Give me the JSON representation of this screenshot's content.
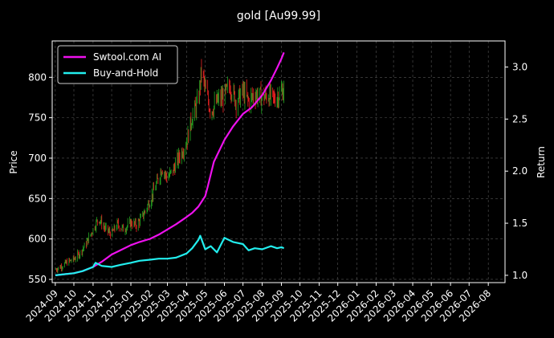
{
  "chart_data": {
    "type": "line",
    "title": "gold [Au99.99]",
    "ylabel_left": "Price",
    "ylabel_right": "Return",
    "ylim_left": [
      546,
      845
    ],
    "ylim_right": [
      0.93,
      3.25
    ],
    "yticks_left": [
      550,
      600,
      650,
      700,
      750,
      800
    ],
    "yticks_right": [
      1.0,
      1.5,
      2.0,
      2.5,
      3.0
    ],
    "yticks_right_labels": [
      "1.0",
      "1.5",
      "2.0",
      "2.5",
      "3.0"
    ],
    "x_ticks": [
      "2024-09",
      "2024-10",
      "2024-11",
      "2024-12",
      "2025-01",
      "2025-02",
      "2025-03",
      "2025-04",
      "2025-05",
      "2025-06",
      "2025-07",
      "2025-08",
      "2025-09",
      "2025-10",
      "2025-11",
      "2025-12",
      "2026-01",
      "2026-02",
      "2026-03",
      "2026-04",
      "2026-05",
      "2026-06",
      "2026-07",
      "2026-08"
    ],
    "grid": true,
    "legend_placement": "top-left",
    "colors": {
      "background": "#000000",
      "axes": "#ffffff",
      "grid": "#555555",
      "up": "#22aa22",
      "down": "#ee2222",
      "ai": "#ee11ee",
      "bh": "#22eeee"
    },
    "series": [
      {
        "name": "Swtool.com AI",
        "axis": "right",
        "x": [
          "2024-09-01",
          "2024-09-15",
          "2024-10-01",
          "2024-10-15",
          "2024-11-01",
          "2024-11-15",
          "2024-12-01",
          "2024-12-15",
          "2025-01-01",
          "2025-01-15",
          "2025-02-01",
          "2025-02-15",
          "2025-03-01",
          "2025-03-15",
          "2025-04-01",
          "2025-04-10",
          "2025-04-20",
          "2025-05-01",
          "2025-05-05",
          "2025-05-15",
          "2025-06-01",
          "2025-06-15",
          "2025-07-01",
          "2025-07-15",
          "2025-08-01",
          "2025-08-15",
          "2025-08-25",
          "2025-09-01",
          "2025-09-05"
        ],
        "values": [
          1.0,
          1.01,
          1.02,
          1.04,
          1.08,
          1.13,
          1.2,
          1.24,
          1.29,
          1.32,
          1.35,
          1.39,
          1.44,
          1.49,
          1.56,
          1.6,
          1.66,
          1.76,
          1.85,
          2.09,
          2.3,
          2.43,
          2.55,
          2.61,
          2.73,
          2.87,
          2.99,
          3.08,
          3.14
        ]
      },
      {
        "name": "Buy-and-Hold",
        "axis": "right",
        "x": [
          "2024-09-01",
          "2024-09-15",
          "2024-10-01",
          "2024-10-15",
          "2024-11-01",
          "2024-11-05",
          "2024-11-15",
          "2024-12-01",
          "2024-12-15",
          "2025-01-01",
          "2025-01-15",
          "2025-02-01",
          "2025-02-15",
          "2025-03-01",
          "2025-03-15",
          "2025-04-01",
          "2025-04-10",
          "2025-04-20",
          "2025-04-23",
          "2025-05-01",
          "2025-05-10",
          "2025-05-20",
          "2025-06-01",
          "2025-06-15",
          "2025-07-01",
          "2025-07-10",
          "2025-07-20",
          "2025-08-01",
          "2025-08-15",
          "2025-08-25",
          "2025-09-01",
          "2025-09-05"
        ],
        "values": [
          1.0,
          1.01,
          1.02,
          1.04,
          1.08,
          1.12,
          1.09,
          1.08,
          1.1,
          1.12,
          1.14,
          1.15,
          1.16,
          1.16,
          1.17,
          1.21,
          1.26,
          1.34,
          1.38,
          1.25,
          1.28,
          1.22,
          1.36,
          1.32,
          1.3,
          1.24,
          1.26,
          1.25,
          1.28,
          1.26,
          1.27,
          1.26
        ]
      }
    ],
    "price_series": {
      "name": "Price",
      "axis": "left",
      "x": [
        "2024-09-01",
        "2024-09-10",
        "2024-09-20",
        "2024-10-01",
        "2024-10-10",
        "2024-10-20",
        "2024-11-01",
        "2024-11-10",
        "2024-11-20",
        "2024-12-01",
        "2024-12-10",
        "2024-12-20",
        "2025-01-01",
        "2025-01-10",
        "2025-01-20",
        "2025-02-01",
        "2025-02-10",
        "2025-02-20",
        "2025-03-01",
        "2025-03-10",
        "2025-03-20",
        "2025-04-01",
        "2025-04-10",
        "2025-04-20",
        "2025-04-25",
        "2025-05-01",
        "2025-05-10",
        "2025-05-20",
        "2025-06-01",
        "2025-06-10",
        "2025-06-20",
        "2025-07-01",
        "2025-07-10",
        "2025-07-20",
        "2025-08-01",
        "2025-08-10",
        "2025-08-20",
        "2025-09-01",
        "2025-09-05"
      ],
      "values": [
        562,
        566,
        571,
        575,
        582,
        593,
        612,
        626,
        613,
        606,
        618,
        612,
        620,
        617,
        628,
        648,
        665,
        688,
        675,
        685,
        702,
        720,
        752,
        770,
        810,
        785,
        758,
        770,
        777,
        790,
        770,
        782,
        770,
        780,
        775,
        778,
        773,
        782,
        785
      ]
    }
  }
}
